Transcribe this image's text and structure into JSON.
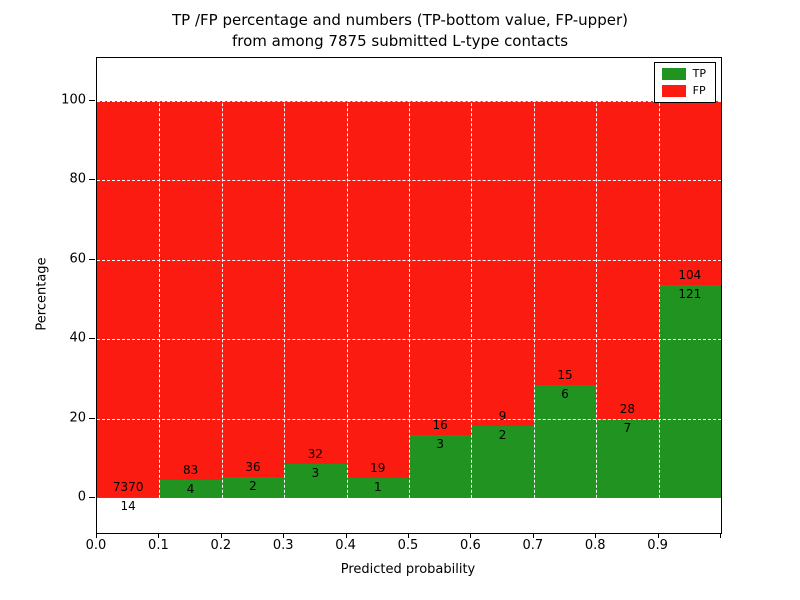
{
  "figure": {
    "title_line1": "TP /FP percentage and numbers (TP-bottom value, FP-upper)",
    "title_line2": "from among 7875 submitted L-type contacts"
  },
  "chart_data": {
    "type": "bar",
    "stacked": true,
    "title": "TP /FP percentage and numbers (TP-bottom value, FP-upper) from among 7875 submitted L-type contacts",
    "xlabel": "Predicted probability",
    "ylabel": "Percentage",
    "x_tick_labels": [
      "0.0",
      "0.1",
      "0.2",
      "0.3",
      "0.4",
      "0.5",
      "0.6",
      "0.7",
      "0.8",
      "0.9"
    ],
    "y_ticks": [
      0,
      20,
      40,
      60,
      80,
      100
    ],
    "xlim": [
      0.0,
      1.0
    ],
    "ylim": [
      -9,
      111
    ],
    "bin_width": 0.1,
    "bin_starts": [
      0.0,
      0.1,
      0.2,
      0.3,
      0.4,
      0.5,
      0.6,
      0.7,
      0.8,
      0.9
    ],
    "series": [
      {
        "name": "TP",
        "color": "#209320",
        "counts": [
          14,
          4,
          2,
          3,
          1,
          3,
          2,
          6,
          7,
          121
        ]
      },
      {
        "name": "FP",
        "color": "#fb1b10",
        "counts": [
          7370,
          83,
          36,
          32,
          19,
          16,
          9,
          15,
          28,
          104
        ]
      }
    ],
    "bars_show": "stacked percentage per bin (TP% bottom in green, FP% top in red, total 100%)",
    "tp_percent_per_bin": [
      0.19,
      4.6,
      5.26,
      8.57,
      5.0,
      15.79,
      18.18,
      28.57,
      20.0,
      53.78
    ],
    "total_contacts": 7875,
    "legend": {
      "position": "upper right",
      "entries": [
        "TP",
        "FP"
      ]
    },
    "grid": {
      "style": "dashed",
      "color": "#ffffff"
    }
  }
}
